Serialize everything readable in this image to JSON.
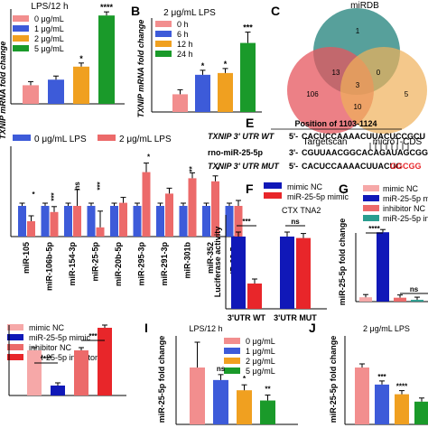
{
  "panel_letters": {
    "b": "B",
    "c": "C",
    "e": "E",
    "f": "F",
    "g": "G",
    "i": "I",
    "j": "J"
  },
  "colors": {
    "pink": "#f28e8e",
    "blue": "#3d5bd9",
    "orange": "#f0a020",
    "green": "#1a9a2a",
    "navy": "#1018b8",
    "red": "#e8262a",
    "teal": "#2a9d8f",
    "salmon": "#ec6a6a",
    "lightpink": "#f6a8a8",
    "mirdb": "#3a8f8a",
    "targetscan": "#e6555d",
    "microt": "#f0b05a"
  },
  "chart_data": [
    {
      "id": "A",
      "type": "bar",
      "title": "LPS/12 h",
      "ylabel": "TXNIP mRNA fold change",
      "ylim": [
        0,
        5
      ],
      "legend": "top-left",
      "series": [
        {
          "name": "0 μg/mL",
          "value": 1.0,
          "sig": ""
        },
        {
          "name": "1 μg/mL",
          "value": 1.3,
          "sig": ""
        },
        {
          "name": "2 μg/mL",
          "value": 2.0,
          "sig": "*"
        },
        {
          "name": "5 μg/mL",
          "value": 4.75,
          "sig": "****"
        }
      ]
    },
    {
      "id": "B",
      "type": "bar",
      "title": "2 μg/mL LPS",
      "ylabel": "TXNIP mRNA fold change",
      "ylim": [
        0,
        5
      ],
      "legend": "top-left",
      "series": [
        {
          "name": "0 h",
          "value": 1.0,
          "sig": ""
        },
        {
          "name": "6 h",
          "value": 2.1,
          "sig": "*"
        },
        {
          "name": "12 h",
          "value": 2.2,
          "sig": "*"
        },
        {
          "name": "24 h",
          "value": 3.9,
          "sig": "***"
        }
      ]
    },
    {
      "id": "C",
      "type": "venn",
      "sets": [
        "miRDB",
        "Targetscan",
        "microT-CDS"
      ],
      "regions": {
        "mirdb_only": "1",
        "targetscan_only": "106",
        "microt_only": "5",
        "mirdb_targetscan": "13",
        "mirdb_microt": "0",
        "targetscan_microt": "10",
        "all": "3"
      }
    },
    {
      "id": "D",
      "type": "bar",
      "legend": "top",
      "series": [
        {
          "name": "0 μg/mL LPS"
        },
        {
          "name": "2 μg/mL LPS"
        }
      ],
      "categories": [
        "miR-105",
        "miR-106b-5p",
        "miR-154-3p",
        "miR-25-5p",
        "miR-20b-5p",
        "miR-295-3p",
        "miR-291-3p",
        "miR-301b",
        "miR-352",
        "miR-93-5p"
      ],
      "values_0": [
        1,
        1,
        1,
        1,
        1,
        1,
        1,
        1,
        1,
        1
      ],
      "values_2": [
        0.5,
        0.8,
        1.0,
        0.3,
        1.1,
        2.1,
        1.4,
        1.9,
        1.8,
        1.0
      ],
      "sig": [
        "*",
        "***",
        "ns",
        "***",
        "",
        "*",
        "",
        "**",
        "*",
        ""
      ],
      "ylim": [
        0,
        2.8
      ]
    },
    {
      "id": "E",
      "type": "sequence",
      "position": "Position of 1103-1124",
      "rows": [
        {
          "label": "TXNIP 3' UTR WT",
          "prime": "5'-",
          "seq": "CACUCCAAAACUUACUCCGCU"
        },
        {
          "label": "rno-miR-25-5p",
          "prime": "3'-",
          "seq": "CGUUAACGGCACAGAUAGCGG"
        },
        {
          "label": "TXNIP 3' UTR MUT",
          "prime": "5'-",
          "seq": "CACUCCAAAACUUACUC",
          "mut": "GGCGG"
        }
      ]
    },
    {
      "id": "F",
      "type": "bar",
      "title": "CTX TNA2",
      "ylabel": "Luciferase activity",
      "ylim": [
        0,
        1.5
      ],
      "legend": "top-left",
      "series": [
        {
          "name": "mimic NC"
        },
        {
          "name": "miR-25-5p mimic"
        }
      ],
      "categories": [
        "3'UTR WT",
        "3'UTR MUT"
      ],
      "values": [
        [
          1.0,
          0.35
        ],
        [
          1.0,
          0.98
        ]
      ],
      "sig": [
        "***",
        "ns"
      ]
    },
    {
      "id": "G",
      "type": "bar",
      "ylabel": "miR-25-5p fold change",
      "ylim": [
        0,
        20
      ],
      "legend": "top-right",
      "series": [
        {
          "name": "mimic NC",
          "value": 1.0
        },
        {
          "name": "miR-25-5p mimic",
          "value": 16.0
        },
        {
          "name": "inhibitor NC",
          "value": 0.9
        },
        {
          "name": "miR-25-5p inhibitor",
          "value": 0.4
        }
      ],
      "sig": [
        "****",
        "ns"
      ]
    },
    {
      "id": "H",
      "type": "bar",
      "ylabel": "miR-25-5p fold change",
      "ylim": [
        0,
        2
      ],
      "legend": "top-left",
      "series": [
        {
          "name": "mimic NC",
          "value": 1.0
        },
        {
          "name": "miR-25-5p mimic",
          "value": 0.22
        },
        {
          "name": "inhibitor NC",
          "value": 1.0
        },
        {
          "name": "miR-25-5p inhibitor",
          "value": 1.5
        }
      ],
      "sig": [
        "****",
        "***"
      ]
    },
    {
      "id": "I",
      "type": "bar",
      "title": "LPS/12 h",
      "ylabel": "miR-25-5p fold change",
      "ylim": [
        0,
        1.5
      ],
      "legend": "top-right",
      "series": [
        {
          "name": "0 μg/mL",
          "value": 1.0,
          "sig": ""
        },
        {
          "name": "1 μg/mL",
          "value": 0.78,
          "sig": "ns"
        },
        {
          "name": "2 μg/mL",
          "value": 0.6,
          "sig": "*"
        },
        {
          "name": "5 μg/mL",
          "value": 0.42,
          "sig": "**"
        }
      ]
    },
    {
      "id": "J",
      "type": "bar",
      "title": "2 μg/mL LPS",
      "ylabel": "miR-25-5p fold change",
      "ylim": [
        0,
        1.5
      ],
      "series": [
        {
          "name": "0 h",
          "value": 1.0,
          "sig": ""
        },
        {
          "name": "6 h",
          "value": 0.7,
          "sig": "***"
        },
        {
          "name": "12 h",
          "value": 0.53,
          "sig": "****"
        },
        {
          "name": "24 h",
          "value": 0.4,
          "sig": ""
        }
      ]
    }
  ]
}
